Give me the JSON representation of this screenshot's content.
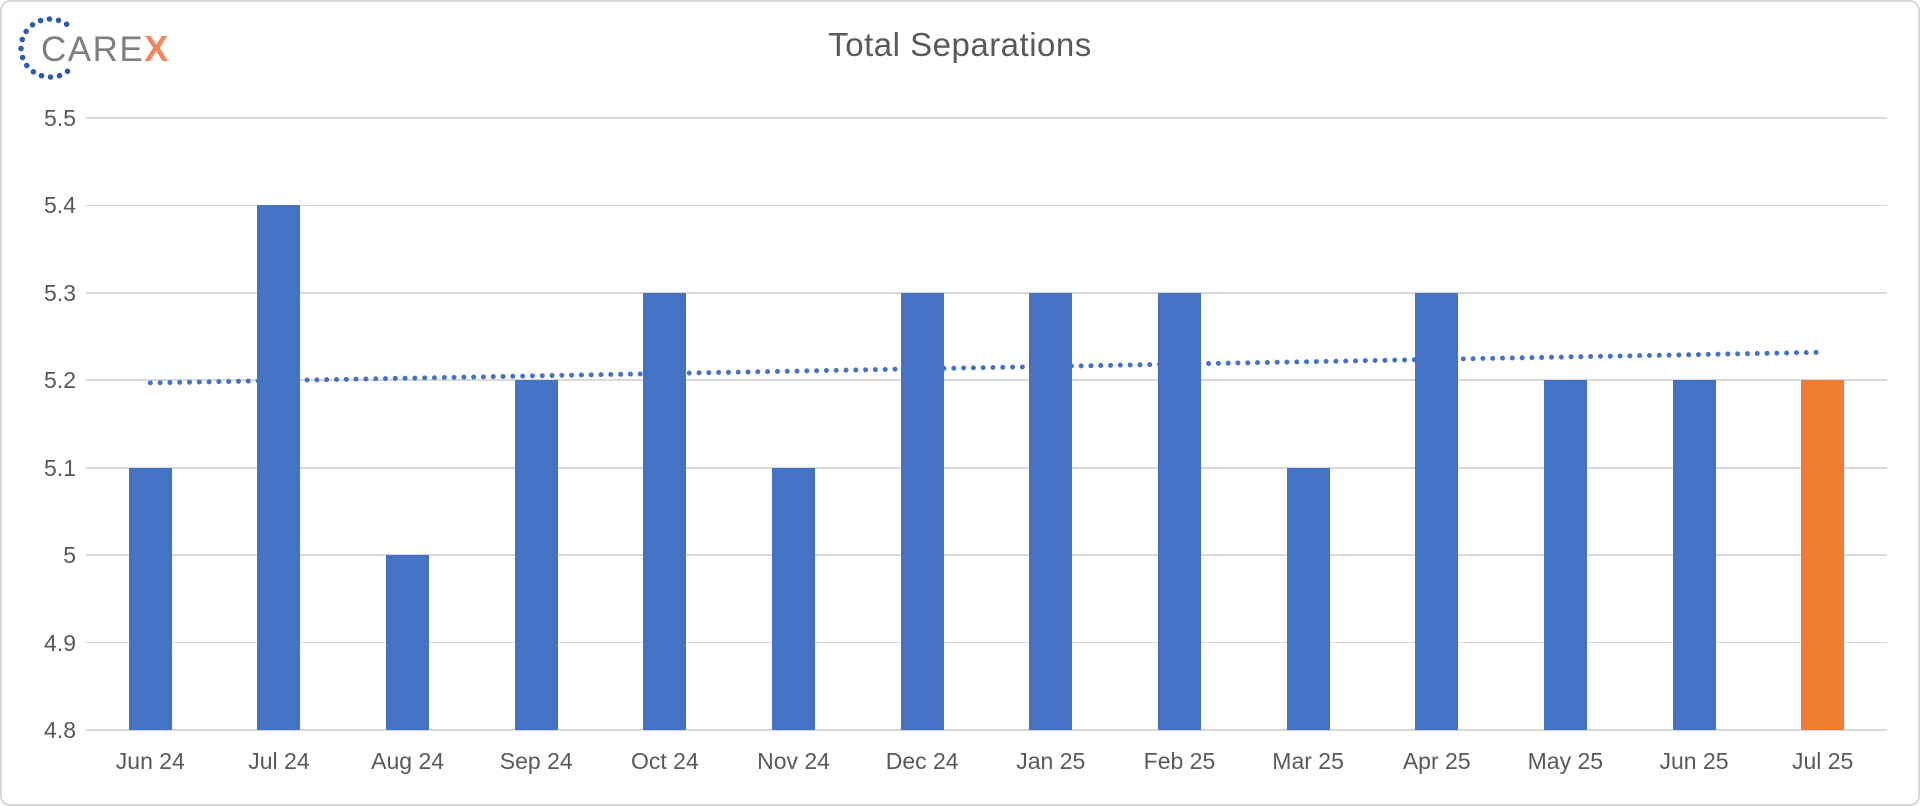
{
  "logo": {
    "care": "CARE",
    "x": "X"
  },
  "chart_data": {
    "type": "bar",
    "title": "Total Separations",
    "categories": [
      "Jun 24",
      "Jul 24",
      "Aug 24",
      "Sep 24",
      "Oct 24",
      "Nov 24",
      "Dec 24",
      "Jan 25",
      "Feb 25",
      "Mar 25",
      "Apr 25",
      "May 25",
      "Jun 25",
      "Jul 25"
    ],
    "values": [
      5.1,
      5.4,
      5.0,
      5.2,
      5.3,
      5.1,
      5.3,
      5.3,
      5.3,
      5.1,
      5.3,
      5.2,
      5.2,
      5.2
    ],
    "highlight_index": 13,
    "xlabel": "",
    "ylabel": "",
    "ylim": [
      4.8,
      5.5
    ],
    "ytick_labels": [
      "5.5",
      "5.4",
      "5.3",
      "5.2",
      "5.1",
      "5",
      "4.9",
      "4.8"
    ],
    "ytick_values": [
      5.5,
      5.4,
      5.3,
      5.2,
      5.1,
      5.0,
      4.9,
      4.8
    ],
    "grid": true,
    "legend": "none",
    "trendline": {
      "style": "dotted",
      "start_value": 5.197,
      "end_value": 5.232
    },
    "colors": {
      "bar": "#4472C4",
      "highlight_bar": "#ED7D31",
      "trendline": "#4472C4",
      "gridline": "#D9D9D9",
      "axis_text": "#595959",
      "title_text": "#595959",
      "logo_dots": "#2B5CA8",
      "logo_care": "#7F7F7F",
      "logo_x": "#F2855A"
    }
  }
}
